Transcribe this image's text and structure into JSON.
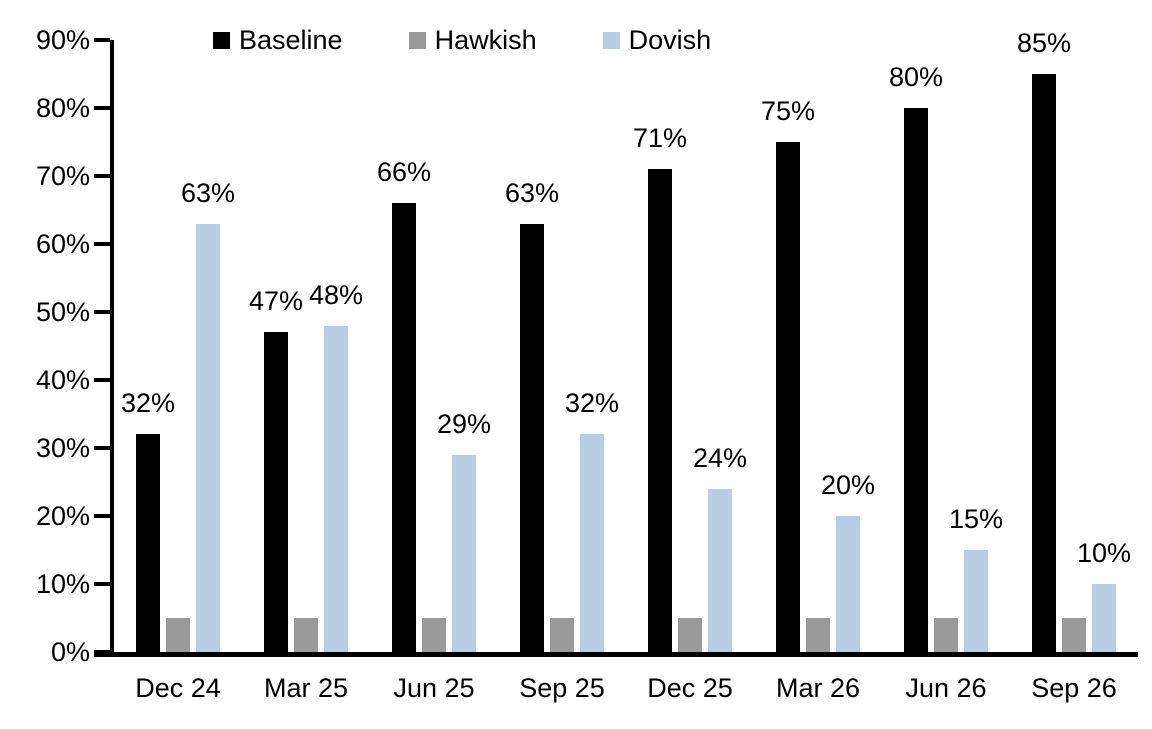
{
  "chart_data": {
    "type": "bar",
    "title": "",
    "categories": [
      "Dec 24",
      "Mar 25",
      "Jun 25",
      "Sep 25",
      "Dec 25",
      "Mar 26",
      "Jun 26",
      "Sep 26"
    ],
    "series": [
      {
        "name": "Baseline",
        "color": "#000000",
        "values": [
          32,
          47,
          66,
          63,
          71,
          75,
          80,
          85
        ],
        "labels": [
          "32%",
          "47%",
          "66%",
          "63%",
          "71%",
          "75%",
          "80%",
          "85%"
        ]
      },
      {
        "name": "Hawkish",
        "color": "#9A9A9A",
        "values": [
          5,
          5,
          5,
          5,
          5,
          5,
          5,
          5
        ],
        "labels": [
          "",
          "",
          "",
          "",
          "",
          "",
          "",
          ""
        ]
      },
      {
        "name": "Dovish",
        "color": "#B8CCE4",
        "values": [
          63,
          48,
          29,
          32,
          24,
          20,
          15,
          10
        ],
        "labels": [
          "63%",
          "48%",
          "29%",
          "32%",
          "24%",
          "20%",
          "15%",
          "10%"
        ]
      }
    ],
    "xlabel": "",
    "ylabel": "",
    "ylim": [
      0,
      90
    ],
    "yticks": [
      "0%",
      "10%",
      "20%",
      "30%",
      "40%",
      "50%",
      "60%",
      "70%",
      "80%",
      "90%"
    ],
    "grid": false,
    "legend_position": "top"
  }
}
